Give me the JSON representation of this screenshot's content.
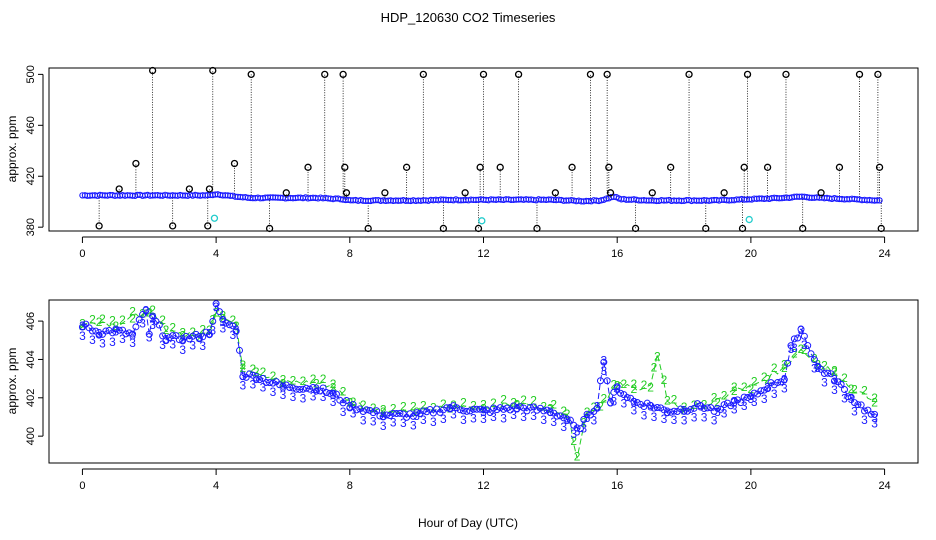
{
  "title": "HDP_120630  CO2 Timeseries",
  "xlabel": "Hour of Day (UTC)",
  "colors": {
    "black": "#000000",
    "blue": "#1a1aff",
    "cyan": "#22cccc",
    "green": "#22cc22",
    "dark": "#000000"
  },
  "chart_data": [
    {
      "type": "scatter",
      "panel": "top",
      "ylabel": "approx. ppm",
      "xlim": [
        -1,
        25
      ],
      "ylim": [
        377,
        505
      ],
      "xticks": [
        0,
        4,
        8,
        12,
        16,
        20,
        24
      ],
      "yticks": [
        380,
        420,
        460,
        500
      ],
      "baseline_series": {
        "name": "blue",
        "x": [
          0,
          1,
          2,
          3,
          3.8,
          4,
          4.6,
          5,
          6,
          7,
          7.8,
          8,
          9,
          10,
          11,
          11.9,
          12,
          13,
          14,
          15,
          15.5,
          15.9,
          16.1,
          17,
          18,
          19,
          20,
          21,
          21.5,
          22,
          23,
          23.8
        ],
        "y": [
          405,
          405,
          405,
          405,
          405,
          406,
          404,
          403,
          403,
          403,
          402,
          401,
          401,
          401,
          401.5,
          401.5,
          401.5,
          401.5,
          401.5,
          400.5,
          401,
          404,
          402,
          401,
          401,
          401,
          402,
          403,
          404,
          403,
          402,
          401
        ]
      },
      "black_spikes": {
        "x": [
          0.5,
          1.1,
          1.6,
          2.1,
          2.7,
          3.2,
          3.75,
          3.8,
          3.9,
          4.55,
          5.05,
          5.6,
          6.1,
          6.75,
          7.25,
          7.8,
          7.85,
          7.9,
          8.55,
          9.05,
          9.7,
          10.2,
          10.8,
          11.45,
          11.85,
          11.9,
          12.0,
          12.5,
          13.05,
          13.6,
          14.15,
          14.65,
          15.2,
          15.7,
          15.75,
          15.8,
          16.55,
          17.05,
          17.6,
          18.15,
          18.65,
          19.2,
          19.75,
          19.8,
          19.9,
          20.5,
          21.05,
          21.55,
          22.1,
          22.65,
          23.25,
          23.8,
          23.85,
          23.9
        ],
        "y": [
          381,
          410,
          430,
          503,
          381,
          410,
          381,
          410,
          503,
          430,
          500,
          379,
          407,
          427,
          500,
          500,
          427,
          407,
          379,
          407,
          427,
          500,
          379,
          407,
          379,
          427,
          500,
          427,
          500,
          379,
          407,
          427,
          500,
          500,
          427,
          407,
          379,
          407,
          427,
          500,
          379,
          407,
          379,
          427,
          500,
          427,
          500,
          379,
          407,
          427,
          500,
          500,
          427,
          379
        ]
      },
      "cyan_points": {
        "x": [
          3.95,
          11.95,
          19.95
        ],
        "y": [
          387,
          385,
          386
        ]
      }
    },
    {
      "type": "line",
      "panel": "bottom",
      "ylabel": "approx. ppm",
      "xlim": [
        -1,
        25
      ],
      "ylim": [
        398.6,
        407.1
      ],
      "xticks": [
        0,
        4,
        8,
        12,
        16,
        20,
        24
      ],
      "yticks": [
        400,
        402,
        404,
        406
      ],
      "series": [
        {
          "name": "2",
          "x": [
            0,
            0.5,
            1,
            1.5,
            2,
            2.5,
            3,
            3.5,
            3.8,
            4,
            4.2,
            4.6,
            4.8,
            5.2,
            6,
            7,
            7.5,
            8,
            9,
            10,
            11,
            12,
            13,
            14,
            14.5,
            14.8,
            15.1,
            15.5,
            16,
            16.5,
            17,
            17.2,
            17.5,
            18,
            19,
            19.5,
            20,
            20.5,
            21,
            21.5,
            22,
            22.5,
            23,
            23.7
          ],
          "y": [
            405.8,
            406.0,
            405.8,
            406.2,
            406.5,
            405.6,
            405.3,
            405.2,
            405.6,
            406.5,
            406.2,
            405.8,
            403.6,
            403.4,
            402.8,
            402.8,
            402.6,
            401.8,
            401.3,
            401.3,
            401.5,
            401.5,
            401.7,
            401.5,
            401.2,
            399.0,
            401.3,
            401.6,
            402.7,
            402.5,
            402.6,
            404.2,
            401.9,
            401.4,
            401.8,
            402.4,
            402.5,
            403.0,
            403.6,
            404.6,
            403.8,
            403.4,
            402.5,
            401.8
          ]
        },
        {
          "name": "3",
          "x": [
            0,
            0.5,
            1,
            1.5,
            1.9,
            2,
            2.1,
            2.5,
            3,
            3.5,
            3.8,
            4,
            4.2,
            4.6,
            4.8,
            5.2,
            6,
            7,
            7.5,
            8,
            9,
            10,
            11,
            12,
            13,
            14,
            14.5,
            14.8,
            15.1,
            15.4,
            15.6,
            15.8,
            16,
            16.5,
            17,
            17.5,
            18,
            18.5,
            19,
            19.5,
            20,
            20.5,
            21,
            21.2,
            21.5,
            22,
            22.5,
            23,
            23.7
          ],
          "y": [
            405.8,
            405.4,
            405.5,
            405.3,
            406.6,
            405.2,
            406.2,
            405.1,
            405.1,
            405.2,
            405.4,
            406.8,
            406.0,
            405.6,
            403.2,
            403.1,
            402.6,
            402.5,
            402.2,
            401.6,
            401.1,
            401.1,
            401.5,
            401.3,
            401.5,
            401.3,
            400.9,
            400.3,
            401.0,
            401.6,
            404.0,
            401.8,
            402.5,
            401.8,
            401.6,
            401.3,
            401.4,
            401.6,
            401.3,
            401.8,
            402.0,
            402.6,
            403.0,
            404.6,
            405.6,
            403.6,
            403.0,
            402.0,
            401.0
          ]
        }
      ]
    }
  ]
}
